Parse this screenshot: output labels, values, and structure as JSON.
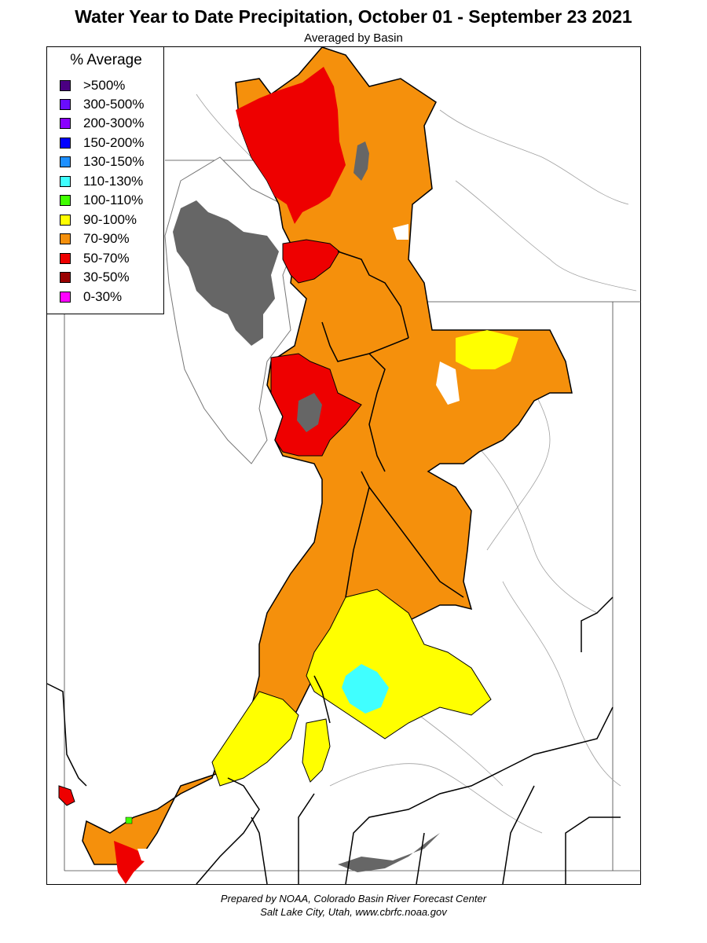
{
  "title": "Water Year to Date Precipitation, October 01  - September 23 2021",
  "subtitle": "Averaged by Basin",
  "legend": {
    "title": "% Average",
    "items": [
      {
        "label": ">500%",
        "color": "#4b0082"
      },
      {
        "label": "300-500%",
        "color": "#6a0dff"
      },
      {
        "label": "200-300%",
        "color": "#8a00ff"
      },
      {
        "label": "150-200%",
        "color": "#0000ff"
      },
      {
        "label": "130-150%",
        "color": "#1e90ff"
      },
      {
        "label": "110-130%",
        "color": "#40ffff"
      },
      {
        "label": "100-110%",
        "color": "#40ff00"
      },
      {
        "label": "90-100%",
        "color": "#ffff00"
      },
      {
        "label": "70-90%",
        "color": "#f5900c"
      },
      {
        "label": "50-70%",
        "color": "#ee0000"
      },
      {
        "label": "30-50%",
        "color": "#990000"
      },
      {
        "label": "0-30%",
        "color": "#ff00ff"
      }
    ]
  },
  "colors": {
    "lake": "#666666",
    "border": "#000000",
    "river": "#9a9a9a"
  },
  "footer": {
    "line1": "Prepared by NOAA, Colorado Basin River Forecast Center",
    "line2": "Salt Lake City, Utah, www.cbrfc.noaa.gov"
  }
}
